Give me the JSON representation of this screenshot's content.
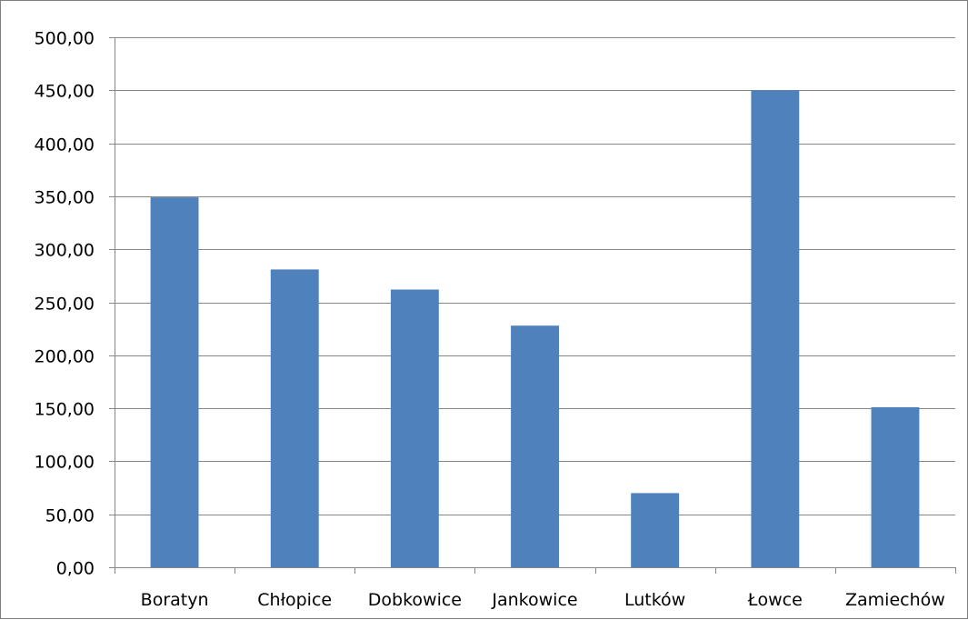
{
  "chart_data": {
    "type": "bar",
    "categories": [
      "Boratyn",
      "Chłopice",
      "Dobkowice",
      "Jankowice",
      "Lutków",
      "Łowce",
      "Zamiechów"
    ],
    "values": [
      349,
      281,
      262,
      228,
      70,
      450,
      151
    ],
    "ylim": [
      0,
      500
    ],
    "yticks": [
      0,
      50,
      100,
      150,
      200,
      250,
      300,
      350,
      400,
      450,
      500
    ],
    "ytick_labels": [
      "0,00",
      "50,00",
      "100,00",
      "150,00",
      "200,00",
      "250,00",
      "300,00",
      "350,00",
      "400,00",
      "450,00",
      "500,00"
    ],
    "grid": true,
    "legend": "none",
    "bar_color": "#4f81bd",
    "gridline_color": "#868686",
    "axis_color": "#868686"
  }
}
